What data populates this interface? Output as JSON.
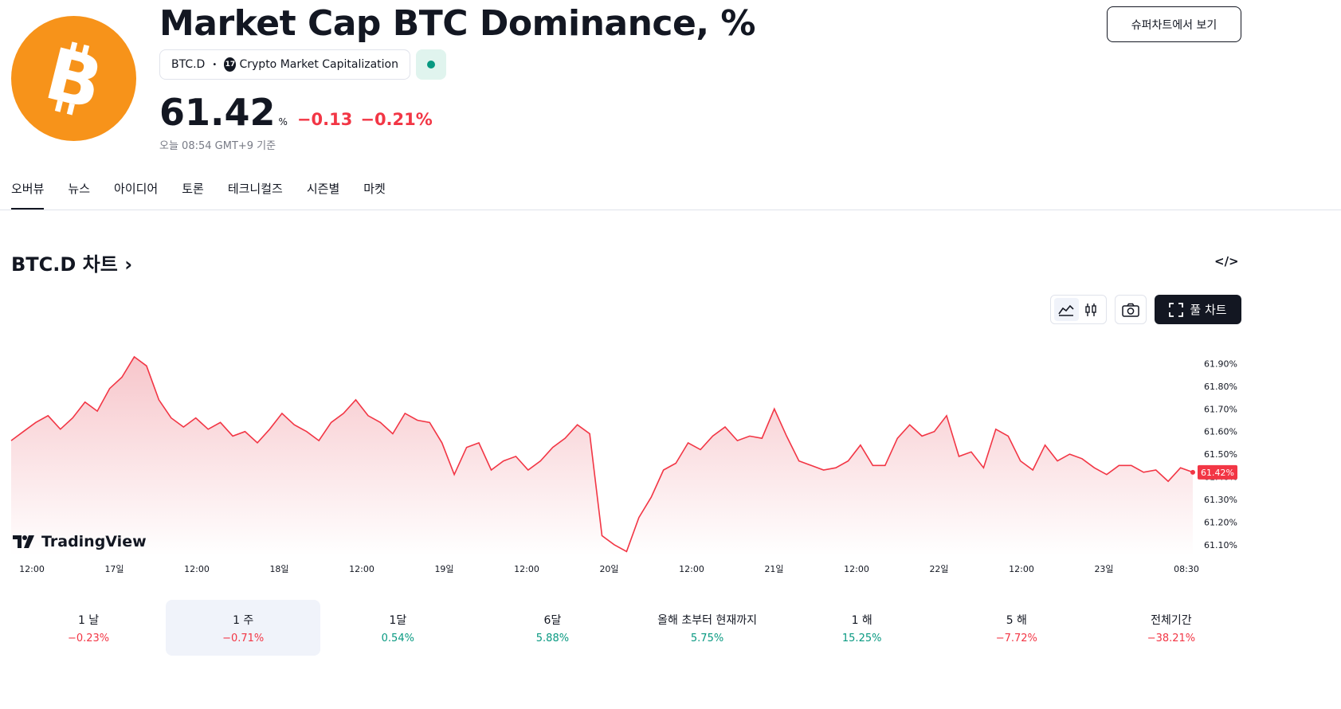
{
  "header": {
    "title": "Market Cap BTC Dominance, %",
    "logo_icon": "bitcoin-icon",
    "symbol": "BTC.D",
    "exchange": "Crypto Market Capitalization",
    "exchange_icon": "tradingview-icon",
    "market_status_color": "#089981",
    "price": "61.42",
    "unit": "%",
    "change_abs": "−0.13",
    "change_pct": "−0.21%",
    "updated": "오늘 08:54 GMT+9 기준",
    "supercharts_label": "슈퍼차트에서 보기"
  },
  "tabs": [
    "오버뷰",
    "뉴스",
    "아이디어",
    "토론",
    "테크니컬즈",
    "시즌별",
    "마켓"
  ],
  "active_tab": "오버뷰",
  "chart_section": {
    "title": "BTC.D 차트",
    "embed_icon": "code-icon",
    "line_style_icon": "area-chart-icon",
    "candle_style_icon": "candlestick-icon",
    "snapshot_icon": "camera-icon",
    "fullchart_icon": "fullscreen-icon",
    "fullchart_label": "풀 차트",
    "watermark": "TradingView"
  },
  "chart_data": {
    "type": "area",
    "x_tick_labels": [
      "12:00",
      "17일",
      "12:00",
      "18일",
      "12:00",
      "19일",
      "12:00",
      "20일",
      "12:00",
      "21일",
      "12:00",
      "22일",
      "12:00",
      "23일",
      "08:30"
    ],
    "y_tick_labels": [
      "61.90%",
      "61.80%",
      "61.70%",
      "61.60%",
      "61.50%",
      "61.40%",
      "61.30%",
      "61.20%",
      "61.10%"
    ],
    "ylim": [
      61.05,
      62.0
    ],
    "last_value_label": "61.42%",
    "colors": {
      "line": "#f23645",
      "fill_top": "#f7c6cb",
      "fill_bottom": "#ffffff"
    },
    "series": [
      {
        "values": [
          61.56,
          61.6,
          61.64,
          61.67,
          61.61,
          61.66,
          61.73,
          61.69,
          61.79,
          61.84,
          61.93,
          61.89,
          61.74,
          61.66,
          61.62,
          61.66,
          61.61,
          61.64,
          61.58,
          61.6,
          61.55,
          61.61,
          61.68,
          61.63,
          61.6,
          61.56,
          61.64,
          61.68,
          61.74,
          61.67,
          61.64,
          61.59,
          61.68,
          61.65,
          61.64,
          61.55,
          61.41,
          61.53,
          61.55,
          61.43,
          61.47,
          61.49,
          61.43,
          61.47,
          61.53,
          61.57,
          61.63,
          61.59,
          61.14,
          61.1,
          61.07,
          61.22,
          61.31,
          61.43,
          61.46,
          61.55,
          61.52,
          61.58,
          61.62,
          61.56,
          61.58,
          61.57,
          61.7,
          61.58,
          61.47,
          61.45,
          61.43,
          61.44,
          61.47,
          61.54,
          61.45,
          61.45,
          61.57,
          61.63,
          61.58,
          61.6,
          61.67,
          61.49,
          61.51,
          61.44,
          61.61,
          61.58,
          61.47,
          61.43,
          61.54,
          61.47,
          61.5,
          61.48,
          61.44,
          61.41,
          61.45,
          61.45,
          61.42,
          61.43,
          61.38,
          61.44,
          61.42
        ]
      }
    ]
  },
  "periods": [
    {
      "label": "1 날",
      "value": "−0.23%",
      "trend": "neg"
    },
    {
      "label": "1 주",
      "value": "−0.71%",
      "trend": "neg"
    },
    {
      "label": "1달",
      "value": "0.54%",
      "trend": "pos"
    },
    {
      "label": "6달",
      "value": "5.88%",
      "trend": "pos"
    },
    {
      "label": "올해 초부터 현재까지",
      "value": "5.75%",
      "trend": "pos"
    },
    {
      "label": "1 해",
      "value": "15.25%",
      "trend": "pos"
    },
    {
      "label": "5 해",
      "value": "−7.72%",
      "trend": "neg"
    },
    {
      "label": "전체기간",
      "value": "−38.21%",
      "trend": "neg"
    }
  ],
  "active_period": "1 주"
}
